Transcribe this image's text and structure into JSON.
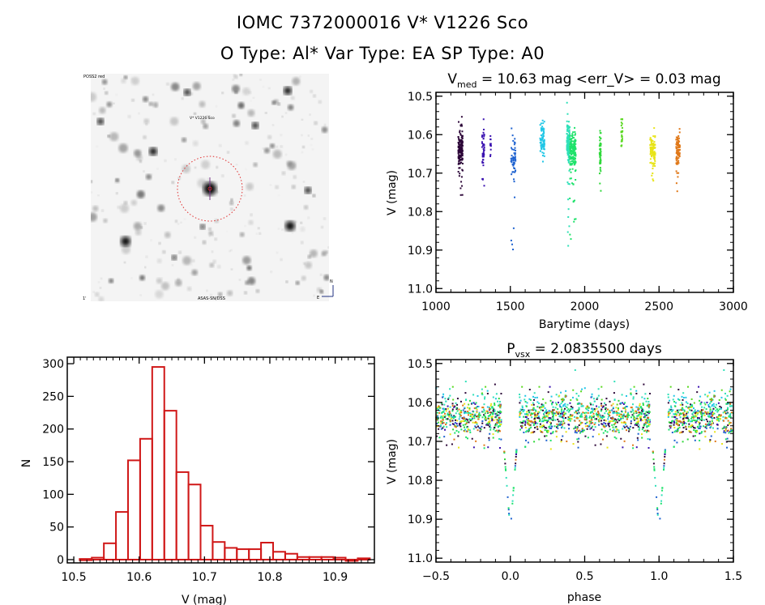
{
  "header": {
    "title_line1": "IOMC 7372000016    V* V1226 Sco",
    "title_line2": "O Type: Al*   Var Type: EA   SP Type: A0"
  },
  "finder_image": {
    "survey_label": "POSS2 red",
    "target_label": "V* V1226 Sco",
    "bottom_left_label": "1'",
    "bottom_label": "ASAS-SN/DSS",
    "compass_north": "N",
    "compass_east": "E",
    "circle_color": "#e03030"
  },
  "colors": {
    "histogram_bar": "#d01818",
    "axis": "#000000",
    "season_palette": [
      "#2c0638",
      "#3a12b0",
      "#1e62d0",
      "#20c6e6",
      "#2fe0b8",
      "#1ee26a",
      "#2fd83a",
      "#5ad820",
      "#e8e418",
      "#e07818"
    ]
  },
  "chart_data": [
    {
      "id": "light_curve",
      "type": "scatter",
      "title": "V_med = 10.63 mag <err_V> = 0.03 mag",
      "title_main": "V",
      "title_sub": "med",
      "title_rest": " = 10.63 mag <err_V> = 0.03 mag",
      "xlabel": "Barytime (days)",
      "ylabel": "V (mag)",
      "xlim": [
        1000,
        3000
      ],
      "ylim": [
        11.01,
        10.49
      ],
      "xticks": [
        1000,
        1500,
        2000,
        2500,
        3000
      ],
      "xtick_labels": [
        "1000",
        "1500",
        "2000",
        "2500",
        "3000"
      ],
      "yticks": [
        10.5,
        10.6,
        10.7,
        10.8,
        10.9,
        11.0
      ],
      "ytick_labels": [
        "10.5",
        "10.6",
        "10.7",
        "10.8",
        "10.9",
        "11.0"
      ],
      "grid": false,
      "median_V": 10.63,
      "mean_err_V": 0.03,
      "seasons": [
        {
          "t_start": 1150,
          "t_end": 1180,
          "v_min": 10.55,
          "v_max": 10.76,
          "v_center": 10.64,
          "n": 170,
          "color_index": 0
        },
        {
          "t_start": 1310,
          "t_end": 1325,
          "v_min": 10.56,
          "v_max": 10.74,
          "v_center": 10.64,
          "n": 45,
          "color_index": 1
        },
        {
          "t_start": 1365,
          "t_end": 1370,
          "v_min": 10.55,
          "v_max": 10.69,
          "v_center": 10.62,
          "n": 12,
          "color_index": 1
        },
        {
          "t_start": 1505,
          "t_end": 1535,
          "v_min": 10.58,
          "v_max": 10.91,
          "v_center": 10.66,
          "n": 60,
          "color_index": 2
        },
        {
          "t_start": 1700,
          "t_end": 1730,
          "v_min": 10.56,
          "v_max": 10.67,
          "v_center": 10.61,
          "n": 70,
          "color_index": 3
        },
        {
          "t_start": 1880,
          "t_end": 1900,
          "v_min": 10.51,
          "v_max": 10.93,
          "v_center": 10.62,
          "n": 150,
          "color_index": 4
        },
        {
          "t_start": 1900,
          "t_end": 1940,
          "v_min": 10.57,
          "v_max": 10.88,
          "v_center": 10.64,
          "n": 180,
          "color_index": 5
        },
        {
          "t_start": 2100,
          "t_end": 2110,
          "v_min": 10.59,
          "v_max": 10.75,
          "v_center": 10.64,
          "n": 45,
          "color_index": 6
        },
        {
          "t_start": 2245,
          "t_end": 2255,
          "v_min": 10.56,
          "v_max": 10.63,
          "v_center": 10.59,
          "n": 25,
          "color_index": 7
        },
        {
          "t_start": 2440,
          "t_end": 2475,
          "v_min": 10.57,
          "v_max": 10.72,
          "v_center": 10.64,
          "n": 90,
          "color_index": 8
        },
        {
          "t_start": 2615,
          "t_end": 2640,
          "v_min": 10.58,
          "v_max": 10.75,
          "v_center": 10.64,
          "n": 90,
          "color_index": 9
        }
      ]
    },
    {
      "id": "histogram",
      "type": "bar",
      "title": "",
      "xlabel": "V (mag)",
      "ylabel": "N",
      "xlim": [
        10.49,
        10.96
      ],
      "ylim": [
        -5,
        310
      ],
      "xticks": [
        10.5,
        10.6,
        10.7,
        10.8,
        10.9
      ],
      "xtick_labels": [
        "10.5",
        "10.6",
        "10.7",
        "10.8",
        "10.9"
      ],
      "yticks": [
        0,
        50,
        100,
        150,
        200,
        250,
        300
      ],
      "ytick_labels": [
        "0",
        "50",
        "100",
        "150",
        "200",
        "250",
        "300"
      ],
      "bin_width": 0.0185,
      "bin_start": 10.509,
      "values": [
        1,
        3,
        25,
        73,
        152,
        185,
        295,
        228,
        134,
        115,
        52,
        27,
        18,
        16,
        16,
        26,
        12,
        9,
        4,
        4,
        4,
        3,
        0,
        2
      ],
      "grid": false
    },
    {
      "id": "phased_curve",
      "type": "scatter",
      "title": "P_vsx = 2.0835500 days",
      "title_main": "P",
      "title_sub": "vsx",
      "title_rest": " = 2.0835500 days",
      "period_days": 2.08355,
      "xlabel": "phase",
      "ylabel": "V (mag)",
      "xlim": [
        -0.5,
        1.5
      ],
      "ylim": [
        11.01,
        10.49
      ],
      "xticks": [
        -0.5,
        0.0,
        0.5,
        1.0,
        1.5
      ],
      "xtick_labels": [
        "−0.5",
        "0.0",
        "0.5",
        "1.0",
        "1.5"
      ],
      "yticks": [
        10.5,
        10.6,
        10.7,
        10.8,
        10.9,
        11.0
      ],
      "ytick_labels": [
        "10.5",
        "10.6",
        "10.7",
        "10.8",
        "10.9",
        "11.0"
      ],
      "grid": false,
      "eclipse": {
        "primary_phase": 0.0,
        "primary_depth_V": 10.93,
        "out_of_eclipse_V": 10.63,
        "half_width_phase": 0.06
      }
    }
  ]
}
